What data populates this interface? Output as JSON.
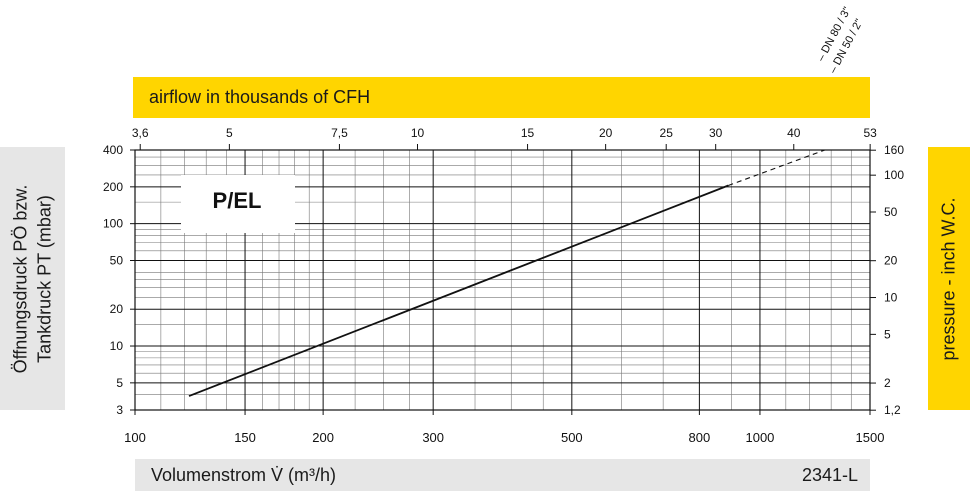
{
  "colors": {
    "accent_yellow": "#ffd500",
    "panel_gray": "#e6e6e6",
    "line": "#111111"
  },
  "top_bar_label": "airflow in thousands of CFH",
  "bottom_bar": {
    "label": "Volumenstrom V̇ (m³/h)",
    "code": "2341-L"
  },
  "left_axis_title": {
    "line1": "Öffnungsdruck PÖ bzw.",
    "line2": "Tankdruck PT (mbar)"
  },
  "right_axis_title": "pressure - inch W.C.",
  "curve_label": "P/EL",
  "dn_labels": [
    "DN 80 / 3\"",
    "DN 50 / 2\""
  ],
  "chart_data": {
    "type": "line",
    "x_scale": "log",
    "y_scale": "log",
    "xlabel": "Volumenstrom V̇ (m³/h)",
    "ylabel": "Öffnungsdruck PÖ bzw. Tankdruck PT (mbar)",
    "xlim": [
      100,
      1500
    ],
    "ylim": [
      3,
      400
    ],
    "x_ticks": [
      100,
      150,
      200,
      300,
      500,
      800,
      1000,
      1500
    ],
    "y_ticks": [
      3,
      5,
      10,
      20,
      50,
      100,
      200,
      400
    ],
    "secondary_x_ticks": [
      "3,6",
      "5",
      "7,5",
      "10",
      "15",
      "20",
      "25",
      "30",
      "40",
      "53"
    ],
    "secondary_y_ticks": [
      "1,2",
      "2",
      "5",
      "10",
      "20",
      "50",
      "100",
      "160"
    ],
    "grid": true,
    "series": [
      {
        "name": "P/EL",
        "style": "solid",
        "x": [
          122,
          890
        ],
        "y": [
          3.9,
          205
        ]
      },
      {
        "name": "",
        "style": "dashed",
        "x": [
          890,
          1270
        ],
        "y": [
          205,
          400
        ]
      }
    ]
  }
}
